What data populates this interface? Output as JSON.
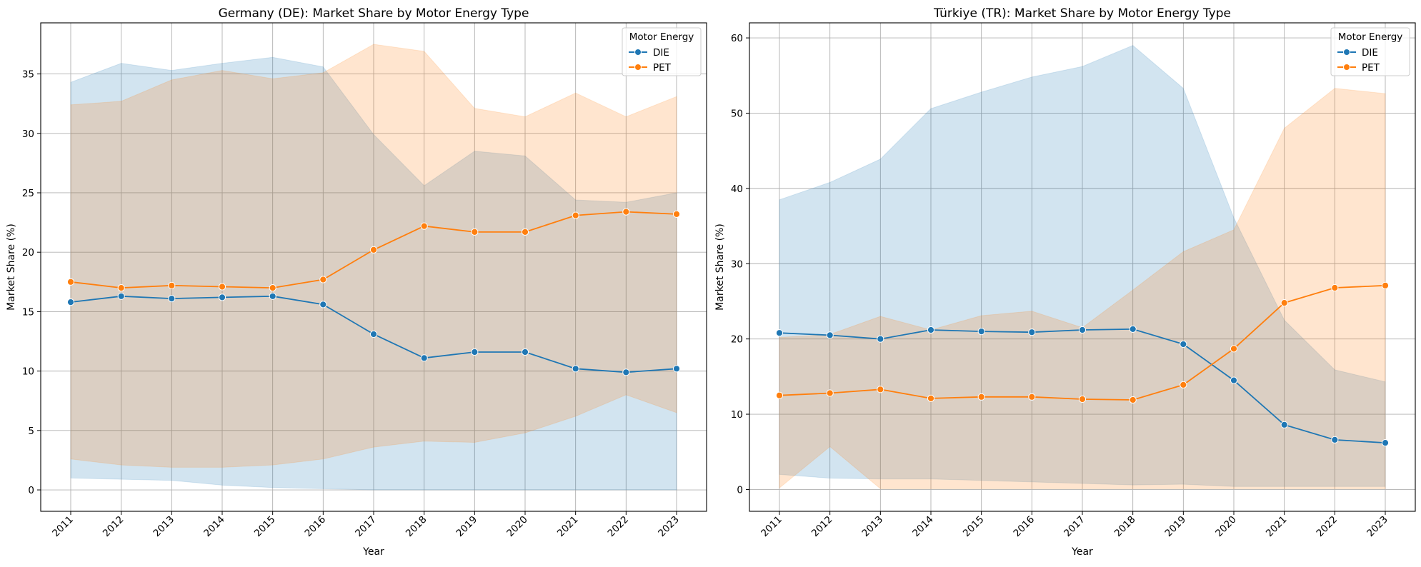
{
  "colors": {
    "DIE": "#1f77b4",
    "PET": "#ff7f0e",
    "grid": "#b0b0b0"
  },
  "chart_data": [
    {
      "type": "line",
      "title": "Germany (DE): Market Share by Motor Energy Type",
      "xlabel": "Year",
      "ylabel": "Market Share (%)",
      "x": [
        2011,
        2012,
        2013,
        2014,
        2015,
        2016,
        2017,
        2018,
        2019,
        2020,
        2021,
        2022,
        2023
      ],
      "ylim": [
        -1.8,
        39.3
      ],
      "yticks": [
        0,
        5,
        10,
        15,
        20,
        25,
        30,
        35
      ],
      "grid": true,
      "legend": {
        "title": "Motor Energy",
        "placement": "top-right"
      },
      "series": [
        {
          "name": "DIE",
          "color_key": "DIE",
          "values": [
            15.8,
            16.3,
            16.1,
            16.2,
            16.3,
            15.6,
            13.1,
            11.1,
            11.6,
            11.6,
            10.2,
            9.9,
            10.2
          ],
          "ci_lower": [
            1.0,
            0.9,
            0.8,
            0.4,
            0.2,
            0.1,
            0.0,
            0.0,
            0.0,
            0.0,
            0.0,
            0.0,
            0.0
          ],
          "ci_upper": [
            34.3,
            35.9,
            35.3,
            35.9,
            36.4,
            35.6,
            29.9,
            25.6,
            28.5,
            28.1,
            24.4,
            24.2,
            25.0
          ]
        },
        {
          "name": "PET",
          "color_key": "PET",
          "values": [
            17.5,
            17.0,
            17.2,
            17.1,
            17.0,
            17.7,
            20.2,
            22.2,
            21.7,
            21.7,
            23.1,
            23.4,
            23.2
          ],
          "ci_lower": [
            2.6,
            2.1,
            1.9,
            1.9,
            2.1,
            2.6,
            3.6,
            4.1,
            4.0,
            4.8,
            6.2,
            8.0,
            6.5
          ],
          "ci_upper": [
            32.4,
            32.7,
            34.5,
            35.3,
            34.6,
            35.1,
            37.5,
            36.9,
            32.1,
            31.4,
            33.4,
            31.4,
            33.1
          ]
        }
      ]
    },
    {
      "type": "line",
      "title": "Türkiye (TR): Market Share by Motor Energy Type",
      "xlabel": "Year",
      "ylabel": "Market Share (%)",
      "x": [
        2011,
        2012,
        2013,
        2014,
        2015,
        2016,
        2017,
        2018,
        2019,
        2020,
        2021,
        2022,
        2023
      ],
      "ylim": [
        -2.9,
        62.0
      ],
      "yticks": [
        0,
        10,
        20,
        30,
        40,
        50,
        60
      ],
      "grid": true,
      "legend": {
        "title": "Motor Energy",
        "placement": "top-right"
      },
      "series": [
        {
          "name": "DIE",
          "color_key": "DIE",
          "values": [
            20.8,
            20.5,
            20.0,
            21.2,
            21.0,
            20.9,
            21.2,
            21.3,
            19.3,
            14.5,
            8.6,
            6.6,
            6.2
          ],
          "ci_lower": [
            2.0,
            1.5,
            1.4,
            1.4,
            1.2,
            1.0,
            0.8,
            0.6,
            0.7,
            0.4,
            0.4,
            0.4,
            0.4
          ],
          "ci_upper": [
            38.5,
            40.8,
            43.9,
            50.6,
            52.8,
            54.8,
            56.2,
            59.0,
            53.3,
            36.1,
            22.5,
            15.9,
            14.3
          ]
        },
        {
          "name": "PET",
          "color_key": "PET",
          "values": [
            12.5,
            12.8,
            13.3,
            12.1,
            12.3,
            12.3,
            12.0,
            11.9,
            13.9,
            18.7,
            24.8,
            26.8,
            27.1
          ],
          "ci_lower": [
            0.2,
            5.7,
            0.1,
            0.1,
            0.1,
            0.1,
            0.1,
            0.1,
            0.1,
            0.1,
            0.1,
            0.1,
            0.1
          ],
          "ci_upper": [
            20.2,
            20.6,
            23.0,
            21.2,
            23.1,
            23.7,
            21.5,
            26.5,
            31.6,
            34.5,
            48.0,
            53.3,
            52.6
          ]
        }
      ]
    }
  ]
}
